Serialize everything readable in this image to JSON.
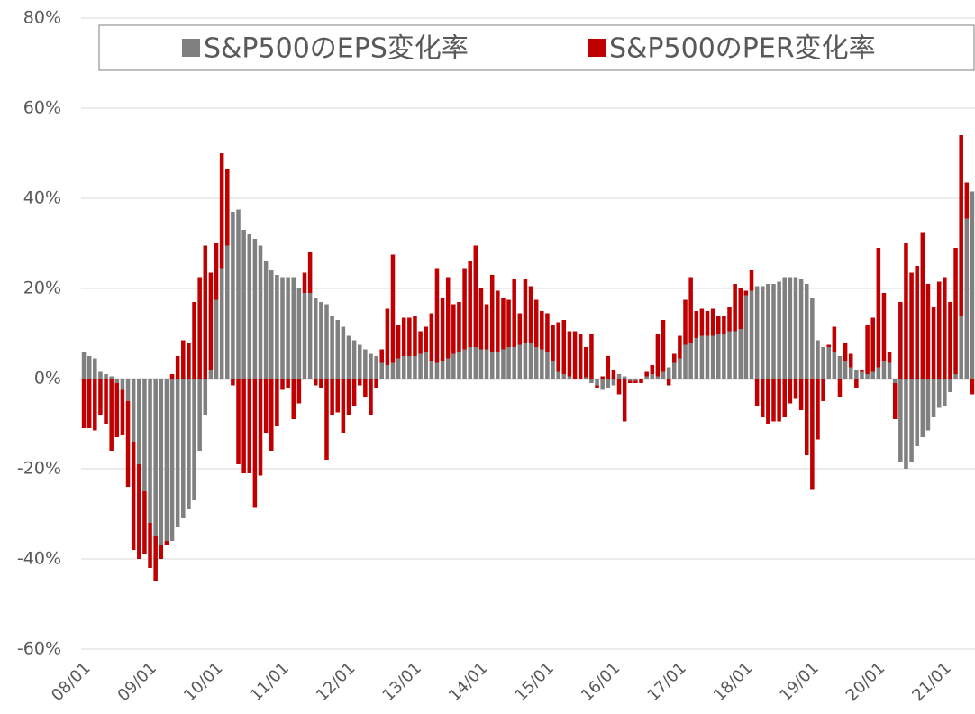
{
  "chart_data": {
    "type": "bar",
    "stacked": true,
    "categories": [
      "08/01",
      null,
      null,
      null,
      null,
      null,
      null,
      null,
      null,
      null,
      null,
      null,
      "09/01",
      null,
      null,
      null,
      null,
      null,
      null,
      null,
      null,
      null,
      null,
      null,
      "10/01",
      null,
      null,
      null,
      null,
      null,
      null,
      null,
      null,
      null,
      null,
      null,
      "11/01",
      null,
      null,
      null,
      null,
      null,
      null,
      null,
      null,
      null,
      null,
      null,
      "12/01",
      null,
      null,
      null,
      null,
      null,
      null,
      null,
      null,
      null,
      null,
      null,
      "13/01",
      null,
      null,
      null,
      null,
      null,
      null,
      null,
      null,
      null,
      null,
      null,
      "14/01",
      null,
      null,
      null,
      null,
      null,
      null,
      null,
      null,
      null,
      null,
      null,
      "15/01",
      null,
      null,
      null,
      null,
      null,
      null,
      null,
      null,
      null,
      null,
      null,
      "16/01",
      null,
      null,
      null,
      null,
      null,
      null,
      null,
      null,
      null,
      null,
      null,
      "17/01",
      null,
      null,
      null,
      null,
      null,
      null,
      null,
      null,
      null,
      null,
      null,
      "18/01",
      null,
      null,
      null,
      null,
      null,
      null,
      null,
      null,
      null,
      null,
      null,
      "19/01",
      null,
      null,
      null,
      null,
      null,
      null,
      null,
      null,
      null,
      null,
      null,
      "20/01",
      null,
      null,
      null,
      null,
      null,
      null,
      null,
      null,
      null,
      null,
      null,
      "21/01",
      null,
      null,
      null,
      null,
      null
    ],
    "series": [
      {
        "name": "S&P500のEPS変化率",
        "color": "#808080",
        "values": [
          6,
          5,
          4.5,
          1.5,
          1,
          0.5,
          -1,
          -2.5,
          -5,
          -14,
          -19,
          -25,
          -32,
          -35,
          -37,
          -36,
          -36,
          -33,
          -31,
          -29,
          -27,
          -16,
          -8,
          2,
          17.5,
          24.5,
          29.5,
          37,
          37.5,
          33,
          32,
          31,
          29.5,
          26,
          24,
          23,
          22.5,
          22.5,
          22.5,
          20,
          19,
          19,
          18,
          17,
          16.5,
          14,
          13,
          11.5,
          9.5,
          8.5,
          7.5,
          6.5,
          5.5,
          5,
          3.5,
          3,
          3.5,
          4.5,
          5,
          5,
          5,
          5.5,
          6,
          4,
          3.5,
          4,
          4.5,
          5.5,
          6,
          6.5,
          7,
          7,
          6.5,
          6.5,
          6,
          6,
          6.5,
          7,
          7,
          7.5,
          8,
          8,
          7,
          6.5,
          6,
          4,
          1.5,
          1,
          0.5,
          0,
          0,
          0.3,
          -1,
          -1.5,
          -2.5,
          -2,
          -1.5,
          1,
          0.5,
          -0.5,
          -0.5,
          0,
          0.5,
          1,
          0.5,
          1.5,
          2.5,
          3.5,
          4.5,
          7.5,
          8,
          9,
          9.5,
          9.5,
          9.5,
          10,
          10,
          10.5,
          10.5,
          11,
          18.5,
          19.5,
          20.5,
          20.5,
          21,
          21,
          21.5,
          22.5,
          22.5,
          22.5,
          22,
          21,
          18,
          8.5,
          7,
          7,
          6,
          5,
          4,
          2.5,
          2,
          1.5,
          1,
          1.5,
          2.5,
          4,
          3.5,
          -1,
          -18.5,
          -20,
          -18.5,
          -15,
          -13,
          -11.5,
          -8.5,
          -6.5,
          -6,
          -3,
          1,
          14,
          35.5,
          41.5
        ]
      },
      {
        "name": "S&P500のPER変化率",
        "color": "#c00000",
        "values": [
          -11,
          -11,
          -11.5,
          -8,
          -10,
          -16,
          -12,
          -10,
          -19,
          -24,
          -21,
          -14,
          -10,
          -10,
          -3,
          -1,
          1,
          5,
          8.5,
          8,
          17,
          22.5,
          29.5,
          21.5,
          12.5,
          25.5,
          17,
          -1.5,
          -19,
          -21,
          -21,
          -28.5,
          -21.5,
          -12,
          -16,
          -10.5,
          -2.5,
          -2,
          -9,
          -5.5,
          4.5,
          9,
          -1.5,
          -2,
          -18,
          -8,
          -7.5,
          -12,
          -8,
          -6,
          -1.5,
          -4,
          -8,
          -2,
          3,
          12.5,
          24,
          7.5,
          8.5,
          8.5,
          9,
          5,
          5.5,
          10.5,
          21,
          14,
          18,
          11,
          11,
          18,
          19,
          22.5,
          13.5,
          10,
          17,
          13.5,
          11.5,
          10.5,
          15,
          7,
          14,
          12.5,
          10.5,
          8.5,
          8.5,
          8,
          11,
          12,
          10,
          10.5,
          10,
          6.7,
          10,
          -0.5,
          0.5,
          5,
          2,
          -3.5,
          -9.5,
          -0.5,
          -0.5,
          -1,
          1,
          2,
          9.5,
          11.5,
          -1.5,
          2,
          5,
          10,
          14.5,
          6,
          6,
          5.5,
          6,
          4,
          4,
          5.5,
          10.5,
          9,
          1,
          4.5,
          -6,
          -8.5,
          -10,
          -9.5,
          -9.5,
          -8.5,
          -5.5,
          -4.5,
          -7,
          -17,
          -24.5,
          -13.5,
          -5,
          0.5,
          5.5,
          -4,
          4,
          3,
          -2,
          0.5,
          11,
          12,
          26.5,
          15,
          2.5,
          -8,
          17,
          30,
          23.5,
          25,
          32.5,
          21,
          16,
          21.5,
          22.5,
          17,
          28,
          40,
          8,
          -3.5
        ]
      }
    ],
    "ylim": [
      -60,
      80
    ],
    "yticks": [
      {
        "value": -60,
        "label": "-60%"
      },
      {
        "value": -40,
        "label": "-40%"
      },
      {
        "value": -20,
        "label": "-20%"
      },
      {
        "value": 0,
        "label": "0%"
      },
      {
        "value": 20,
        "label": "20%"
      },
      {
        "value": 40,
        "label": "40%"
      },
      {
        "value": 60,
        "label": "60%"
      },
      {
        "value": 80,
        "label": "80%"
      }
    ],
    "grid": true,
    "legend": "top"
  }
}
